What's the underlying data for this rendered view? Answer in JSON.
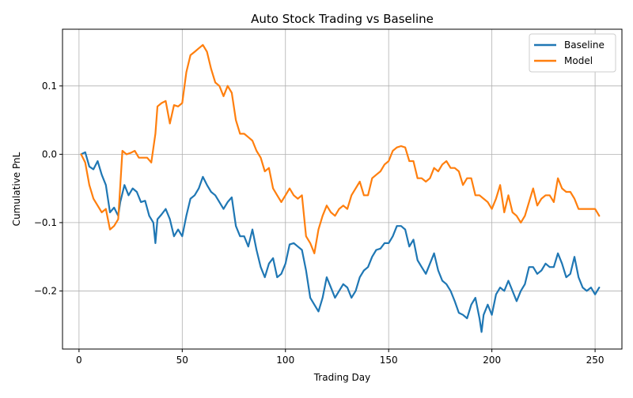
{
  "chart_data": {
    "type": "line",
    "title": "Auto Stock Trading vs Baseline",
    "xlabel": "Trading Day",
    "ylabel": "Cumulative PnL",
    "xlim": [
      -8,
      263
    ],
    "ylim": [
      -0.285,
      0.183
    ],
    "xticks": [
      0,
      50,
      100,
      150,
      200,
      250
    ],
    "xtick_labels": [
      "0",
      "50",
      "100",
      "150",
      "200",
      "250"
    ],
    "yticks": [
      -0.2,
      -0.1,
      0.0,
      0.1
    ],
    "ytick_labels": [
      "−0.2",
      "−0.1",
      "0.0",
      "0.1"
    ],
    "grid": true,
    "legend_position": "top-right",
    "series": [
      {
        "name": "Baseline",
        "color": "#1f77b4",
        "x": [
          1,
          3,
          5,
          7,
          9,
          11,
          13,
          15,
          17,
          19,
          20,
          22,
          24,
          26,
          28,
          30,
          32,
          34,
          36,
          37,
          38,
          40,
          42,
          44,
          46,
          48,
          50,
          52,
          54,
          56,
          58,
          60,
          62,
          64,
          66,
          68,
          70,
          72,
          74,
          76,
          78,
          80,
          82,
          84,
          86,
          88,
          90,
          92,
          94,
          96,
          98,
          100,
          102,
          104,
          106,
          108,
          110,
          112,
          114,
          116,
          118,
          120,
          122,
          124,
          126,
          128,
          130,
          132,
          134,
          136,
          138,
          140,
          142,
          144,
          146,
          148,
          150,
          152,
          154,
          156,
          158,
          160,
          162,
          164,
          166,
          168,
          170,
          172,
          174,
          176,
          178,
          180,
          182,
          184,
          186,
          188,
          190,
          192,
          194,
          195,
          196,
          198,
          200,
          202,
          204,
          206,
          208,
          210,
          212,
          214,
          216,
          218,
          220,
          222,
          224,
          226,
          228,
          230,
          232,
          234,
          236,
          238,
          240,
          242,
          244,
          246,
          248,
          250,
          252
        ],
        "y": [
          0.0,
          0.003,
          -0.018,
          -0.022,
          -0.01,
          -0.03,
          -0.045,
          -0.085,
          -0.078,
          -0.09,
          -0.07,
          -0.045,
          -0.06,
          -0.05,
          -0.055,
          -0.07,
          -0.068,
          -0.09,
          -0.1,
          -0.13,
          -0.095,
          -0.088,
          -0.08,
          -0.095,
          -0.12,
          -0.11,
          -0.12,
          -0.09,
          -0.065,
          -0.06,
          -0.05,
          -0.033,
          -0.045,
          -0.055,
          -0.06,
          -0.07,
          -0.08,
          -0.07,
          -0.063,
          -0.105,
          -0.12,
          -0.12,
          -0.135,
          -0.11,
          -0.14,
          -0.165,
          -0.18,
          -0.16,
          -0.152,
          -0.18,
          -0.175,
          -0.16,
          -0.132,
          -0.13,
          -0.135,
          -0.14,
          -0.17,
          -0.21,
          -0.22,
          -0.23,
          -0.21,
          -0.18,
          -0.195,
          -0.21,
          -0.2,
          -0.19,
          -0.195,
          -0.21,
          -0.2,
          -0.18,
          -0.17,
          -0.165,
          -0.15,
          -0.14,
          -0.138,
          -0.13,
          -0.13,
          -0.12,
          -0.105,
          -0.105,
          -0.11,
          -0.135,
          -0.125,
          -0.155,
          -0.165,
          -0.175,
          -0.16,
          -0.145,
          -0.17,
          -0.185,
          -0.19,
          -0.2,
          -0.215,
          -0.232,
          -0.235,
          -0.24,
          -0.22,
          -0.21,
          -0.24,
          -0.26,
          -0.235,
          -0.22,
          -0.235,
          -0.205,
          -0.195,
          -0.2,
          -0.185,
          -0.2,
          -0.215,
          -0.2,
          -0.19,
          -0.165,
          -0.165,
          -0.175,
          -0.17,
          -0.16,
          -0.165,
          -0.165,
          -0.145,
          -0.16,
          -0.18,
          -0.175,
          -0.15,
          -0.18,
          -0.195,
          -0.2,
          -0.195,
          -0.205,
          -0.195
        ]
      },
      {
        "name": "Model",
        "color": "#ff7f0e",
        "x": [
          1,
          3,
          5,
          7,
          9,
          11,
          13,
          15,
          17,
          19,
          21,
          23,
          25,
          27,
          29,
          31,
          33,
          35,
          37,
          38,
          40,
          42,
          44,
          46,
          48,
          50,
          52,
          54,
          56,
          58,
          60,
          62,
          64,
          66,
          68,
          70,
          72,
          74,
          76,
          78,
          80,
          82,
          84,
          86,
          88,
          90,
          92,
          94,
          96,
          98,
          100,
          102,
          104,
          106,
          108,
          110,
          112,
          114,
          116,
          118,
          120,
          122,
          124,
          126,
          128,
          130,
          132,
          134,
          136,
          138,
          140,
          142,
          144,
          146,
          148,
          150,
          152,
          154,
          156,
          158,
          160,
          162,
          164,
          166,
          168,
          170,
          172,
          174,
          176,
          178,
          180,
          182,
          184,
          186,
          188,
          190,
          192,
          194,
          196,
          198,
          200,
          202,
          204,
          206,
          208,
          210,
          212,
          214,
          216,
          218,
          220,
          222,
          224,
          226,
          228,
          230,
          232,
          234,
          236,
          238,
          240,
          242,
          244,
          246,
          248,
          250,
          252
        ],
        "y": [
          0.0,
          -0.012,
          -0.045,
          -0.065,
          -0.075,
          -0.085,
          -0.08,
          -0.11,
          -0.105,
          -0.095,
          0.005,
          0.0,
          0.002,
          0.005,
          -0.005,
          -0.005,
          -0.005,
          -0.012,
          0.03,
          0.07,
          0.075,
          0.078,
          0.045,
          0.072,
          0.07,
          0.075,
          0.12,
          0.145,
          0.15,
          0.155,
          0.16,
          0.15,
          0.125,
          0.105,
          0.1,
          0.085,
          0.1,
          0.09,
          0.05,
          0.03,
          0.03,
          0.025,
          0.02,
          0.005,
          -0.005,
          -0.025,
          -0.02,
          -0.05,
          -0.06,
          -0.07,
          -0.06,
          -0.05,
          -0.06,
          -0.065,
          -0.06,
          -0.12,
          -0.13,
          -0.145,
          -0.11,
          -0.09,
          -0.075,
          -0.085,
          -0.09,
          -0.08,
          -0.075,
          -0.08,
          -0.06,
          -0.05,
          -0.04,
          -0.06,
          -0.06,
          -0.035,
          -0.03,
          -0.025,
          -0.015,
          -0.01,
          0.005,
          0.01,
          0.012,
          0.01,
          -0.01,
          -0.01,
          -0.035,
          -0.035,
          -0.04,
          -0.035,
          -0.02,
          -0.025,
          -0.015,
          -0.01,
          -0.02,
          -0.02,
          -0.025,
          -0.045,
          -0.035,
          -0.035,
          -0.06,
          -0.06,
          -0.065,
          -0.07,
          -0.08,
          -0.065,
          -0.045,
          -0.085,
          -0.06,
          -0.085,
          -0.09,
          -0.1,
          -0.09,
          -0.07,
          -0.05,
          -0.075,
          -0.065,
          -0.06,
          -0.06,
          -0.07,
          -0.035,
          -0.05,
          -0.055,
          -0.055,
          -0.065,
          -0.08,
          -0.08,
          -0.08,
          -0.08,
          -0.08,
          -0.09
        ]
      }
    ]
  }
}
